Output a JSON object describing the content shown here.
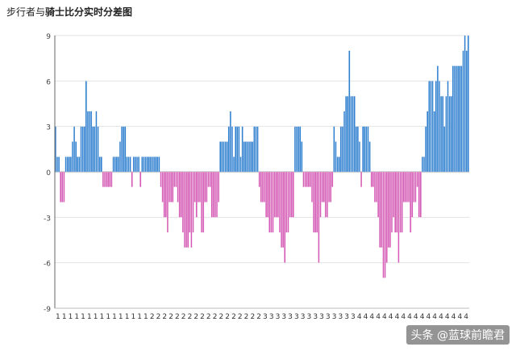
{
  "title_normal": "步行者与",
  "title_bold": "骑士比分实时分差图",
  "watermark": "头条 @蓝球前瞻君",
  "chart_data": {
    "type": "bar",
    "title": "步行者与骑士比分实时分差图",
    "ylim": [
      -9,
      9
    ],
    "yticks": [
      -9,
      -6,
      -3,
      0,
      3,
      6,
      9
    ],
    "grid": true,
    "x_label_pattern": [
      "1",
      "1",
      "1",
      "1",
      "1",
      "1",
      "1",
      "1",
      "1",
      "1",
      "1",
      "1",
      "1",
      "1",
      "1",
      "2",
      "2",
      "2",
      "2",
      "2",
      "2",
      "2",
      "2",
      "2",
      "2",
      "2",
      "2",
      "2",
      "2",
      "2",
      "2",
      "2",
      "2",
      "3",
      "3",
      "3",
      "3",
      "3",
      "3",
      "3",
      "3",
      "3",
      "3",
      "3",
      "3",
      "3",
      "3",
      "3",
      "4",
      "4",
      "4",
      "4",
      "4",
      "4",
      "4",
      "4",
      "4",
      "4",
      "4",
      "4",
      "4",
      "4",
      "4",
      "4",
      "4",
      "4"
    ],
    "colors": {
      "positive": "#2f7fcf",
      "negative": "#d459b4"
    },
    "values": [
      3,
      1,
      1,
      -2,
      -2,
      -2,
      1,
      1,
      1,
      1,
      2,
      3,
      2,
      1,
      1,
      3,
      3,
      3,
      6,
      4,
      4,
      4,
      3,
      3,
      4,
      3,
      1,
      1,
      -1,
      -1,
      -1,
      -1,
      -1,
      -1,
      1,
      1,
      1,
      1,
      2,
      3,
      3,
      3,
      1,
      1,
      1,
      -1,
      1,
      1,
      1,
      1,
      -1,
      1,
      1,
      1,
      1,
      1,
      1,
      1,
      1,
      1,
      1,
      1,
      -1,
      -2,
      -3,
      -3,
      -4,
      -2,
      -2,
      -2,
      -1,
      -1,
      -2,
      -3,
      -3,
      -4,
      -5,
      -5,
      -5,
      -4,
      -5,
      -4,
      -2,
      -3,
      -2,
      -2,
      -4,
      -4,
      -2,
      -2,
      -1,
      -1,
      -3,
      -3,
      -3,
      -3,
      -2,
      2,
      2,
      2,
      2,
      2,
      3,
      4,
      3,
      1,
      3,
      3,
      3,
      1,
      3,
      2,
      2,
      2,
      2,
      2,
      2,
      3,
      3,
      3,
      -1,
      -2,
      -2,
      -2,
      -3,
      -3,
      -4,
      -4,
      -4,
      -3,
      -3,
      -3,
      -4,
      -5,
      -5,
      -6,
      -4,
      -4,
      -3,
      -3,
      -3,
      3,
      3,
      3,
      3,
      2,
      -1,
      -1,
      -1,
      -1,
      -1,
      -2,
      -4,
      -4,
      -4,
      -6,
      -3,
      -2,
      -2,
      -3,
      -3,
      -2,
      -2,
      -1,
      3,
      2,
      1,
      1,
      3,
      3,
      4,
      5,
      5,
      8,
      5,
      5,
      5,
      3,
      3,
      2,
      -1,
      3,
      3,
      3,
      3,
      2,
      -1,
      -1,
      -2,
      -2,
      -3,
      -5,
      -5,
      -7,
      -7,
      -6,
      -5,
      -5,
      -4,
      -3,
      -4,
      -4,
      -6,
      -4,
      -4,
      -2,
      -2,
      -2,
      -2,
      -4,
      -3,
      -2,
      -2,
      -1,
      -3,
      -3,
      1,
      1,
      3,
      4,
      6,
      6,
      6,
      4,
      6,
      7,
      6,
      5,
      5,
      3,
      5,
      6,
      5,
      5,
      7,
      7,
      7,
      7,
      7,
      7,
      8,
      9,
      8,
      9
    ]
  }
}
